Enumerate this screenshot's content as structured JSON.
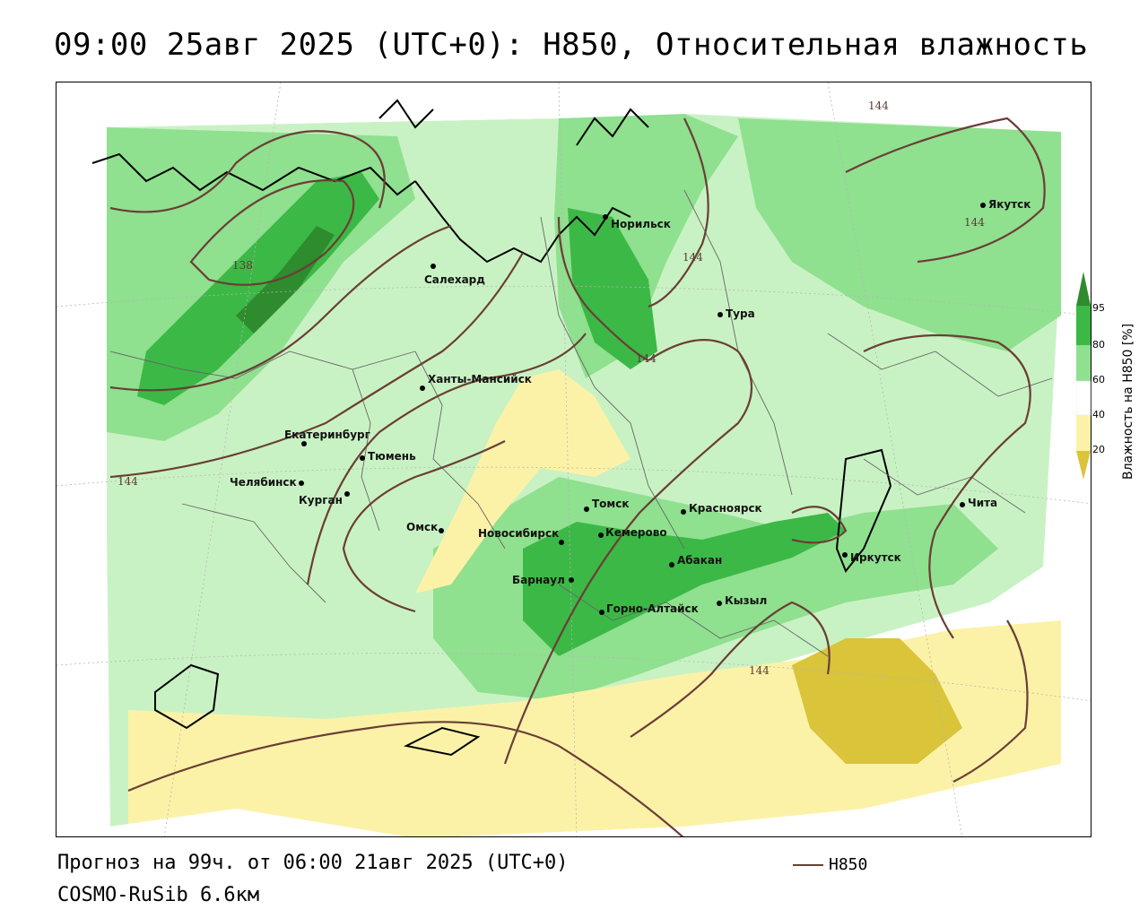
{
  "title": "09:00 25авг 2025 (UTC+0): H850, Относительная влажность",
  "footer": {
    "forecast": "Прогноз на 99ч. от 06:00 21авг 2025 (UTC+0)",
    "model": "COSMO-RuSib 6.6км"
  },
  "legend": {
    "line_label": "H850",
    "line_color": "#6b3e36"
  },
  "colorbar": {
    "title": "Влажность на H850 [%]",
    "ticks": [
      "95",
      "80",
      "60",
      "40",
      "20"
    ],
    "colors": {
      "very_high": "#2e8b2e",
      "high": "#3cb846",
      "mid": "#8fe08f",
      "light": "#c9f2c4",
      "dry": "#fbf2a8",
      "very_dry": "#d9c43a"
    }
  },
  "cities": [
    {
      "name": "Норильск"
    },
    {
      "name": "Якутск"
    },
    {
      "name": "Салехард"
    },
    {
      "name": "Тура"
    },
    {
      "name": "Ханты-Мансийск"
    },
    {
      "name": "Екатеринбург"
    },
    {
      "name": "Тюмень"
    },
    {
      "name": "Челябинск"
    },
    {
      "name": "Курган"
    },
    {
      "name": "Омск"
    },
    {
      "name": "Томск"
    },
    {
      "name": "Красноярск"
    },
    {
      "name": "Новосибирск"
    },
    {
      "name": "Кемерово"
    },
    {
      "name": "Абакан"
    },
    {
      "name": "Иркутск"
    },
    {
      "name": "Чита"
    },
    {
      "name": "Барнаул"
    },
    {
      "name": "Кызыл"
    },
    {
      "name": "Горно-Алтайск"
    }
  ],
  "contour_labels": [
    "144",
    "138",
    "144",
    "144",
    "144",
    "144",
    "144"
  ]
}
